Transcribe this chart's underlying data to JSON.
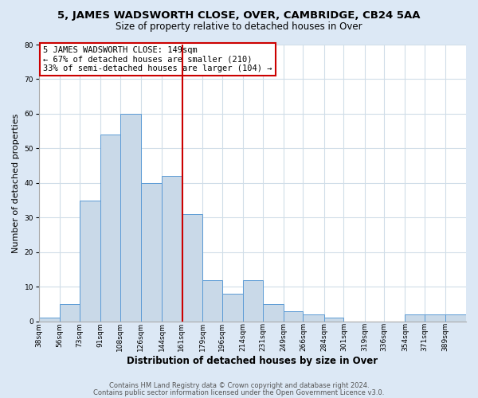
{
  "title": "5, JAMES WADSWORTH CLOSE, OVER, CAMBRIDGE, CB24 5AA",
  "subtitle": "Size of property relative to detached houses in Over",
  "xlabel": "Distribution of detached houses by size in Over",
  "ylabel": "Number of detached properties",
  "bar_labels": [
    "38sqm",
    "56sqm",
    "73sqm",
    "91sqm",
    "108sqm",
    "126sqm",
    "144sqm",
    "161sqm",
    "179sqm",
    "196sqm",
    "214sqm",
    "231sqm",
    "249sqm",
    "266sqm",
    "284sqm",
    "301sqm",
    "319sqm",
    "336sqm",
    "354sqm",
    "371sqm",
    "389sqm"
  ],
  "bar_values": [
    1,
    5,
    35,
    54,
    60,
    40,
    42,
    31,
    12,
    8,
    12,
    5,
    3,
    2,
    1,
    0,
    0,
    0,
    2,
    2,
    2
  ],
  "bar_color": "#c9d9e8",
  "bar_edgecolor": "#5b9bd5",
  "vline_color": "#cc0000",
  "ylim": [
    0,
    80
  ],
  "yticks": [
    0,
    10,
    20,
    30,
    40,
    50,
    60,
    70,
    80
  ],
  "annotation_text": "5 JAMES WADSWORTH CLOSE: 149sqm\n← 67% of detached houses are smaller (210)\n33% of semi-detached houses are larger (104) →",
  "footer1": "Contains HM Land Registry data © Crown copyright and database right 2024.",
  "footer2": "Contains public sector information licensed under the Open Government Licence v3.0.",
  "background_color": "#dce8f5",
  "plot_background": "#ffffff",
  "grid_color": "#d0dde8",
  "title_fontsize": 9.5,
  "subtitle_fontsize": 8.5,
  "xlabel_fontsize": 8.5,
  "ylabel_fontsize": 8,
  "tick_fontsize": 6.5,
  "annotation_fontsize": 7.5,
  "footer_fontsize": 6.0
}
